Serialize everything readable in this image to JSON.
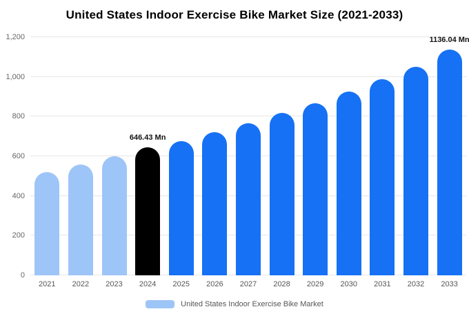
{
  "title": "United States Indoor Exercise Bike Market Size (2021-2033)",
  "legend": {
    "label": "United States Indoor Exercise Bike Market",
    "swatch_color": "#9ec5f8"
  },
  "chart_data": {
    "type": "bar",
    "title": "United States Indoor Exercise Bike Market Size (2021-2033)",
    "xlabel": "",
    "ylabel": "",
    "categories": [
      "2021",
      "2022",
      "2023",
      "2024",
      "2025",
      "2026",
      "2027",
      "2028",
      "2029",
      "2030",
      "2031",
      "2032",
      "2033"
    ],
    "values": [
      520,
      560,
      600,
      646.43,
      678,
      722,
      767,
      818,
      868,
      926,
      990,
      1052,
      1136.04
    ],
    "bar_colors": [
      "#9ec5f8",
      "#9ec5f8",
      "#9ec5f8",
      "#000000",
      "#1671f5",
      "#1671f5",
      "#1671f5",
      "#1671f5",
      "#1671f5",
      "#1671f5",
      "#1671f5",
      "#1671f5",
      "#1671f5"
    ],
    "annotations": [
      {
        "index": 3,
        "text": "646.43 Mn"
      },
      {
        "index": 12,
        "text": "1136.04 Mn"
      }
    ],
    "ylim": [
      0,
      1200
    ],
    "yticks": [
      {
        "value": 0,
        "label": "0"
      },
      {
        "value": 200,
        "label": "200"
      },
      {
        "value": 400,
        "label": "400"
      },
      {
        "value": 600,
        "label": "600"
      },
      {
        "value": 800,
        "label": "800"
      },
      {
        "value": 1000,
        "label": "1,000"
      },
      {
        "value": 1200,
        "label": "1,200"
      }
    ],
    "grid": true,
    "legend_position": "bottom"
  }
}
